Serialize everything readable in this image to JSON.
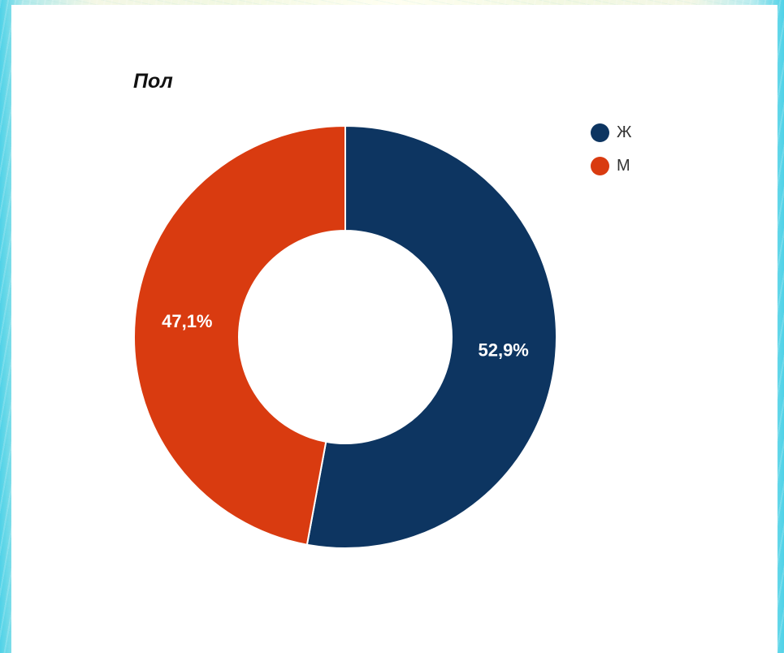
{
  "chart_data": {
    "type": "pie",
    "donut": true,
    "title": "Пол",
    "categories": [
      "Ж",
      "М"
    ],
    "values": [
      52.9,
      47.1
    ],
    "data_labels": [
      "52,9%",
      "47,1%"
    ],
    "colors": [
      "#0d3561",
      "#d93b10"
    ],
    "legend": "top-right"
  }
}
